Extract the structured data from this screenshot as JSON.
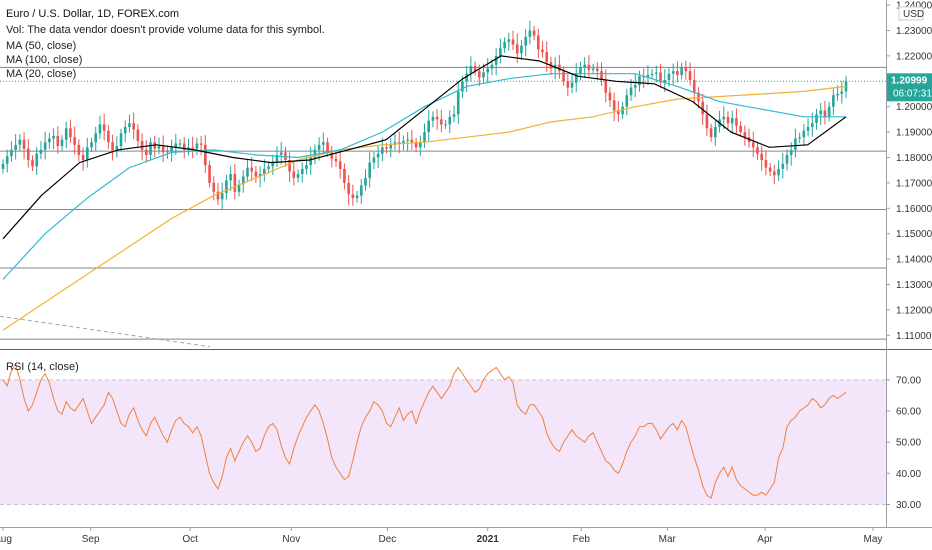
{
  "header": {
    "symbol": "Euro / U.S. Dollar, 1D, FOREX.com",
    "vol_note": "Vol: The data vendor doesn't provide volume data for this symbol.",
    "ma50": "MA (50, close)",
    "ma100": "MA (100, close)",
    "ma20": "MA (20, close)"
  },
  "price_axis": {
    "currency": "USD",
    "last_price": "1.20999",
    "countdown": "06:07:31",
    "ticks": [
      "1.24000",
      "1.23000",
      "1.22000",
      "1.21000",
      "1.20000",
      "1.19000",
      "1.18000",
      "1.17000",
      "1.16000",
      "1.15000",
      "1.14000",
      "1.13000",
      "1.12000",
      "1.11000"
    ]
  },
  "rsi": {
    "label": "RSI (14, close)",
    "ticks": [
      "70.00",
      "60.00",
      "50.00",
      "40.00",
      "30.00"
    ]
  },
  "time_axis": {
    "labels": [
      "Aug",
      "Sep",
      "Oct",
      "Nov",
      "Dec",
      "2021",
      "Feb",
      "Mar",
      "Apr",
      "May"
    ]
  },
  "colors": {
    "up": "#26a69a",
    "down": "#ef5350",
    "ma50": "#000000",
    "ma100": "#2fbcd0",
    "ma20": "#f2b135",
    "rsi_line": "#f0803c",
    "rsi_band": "#f3e6fb",
    "hline": "#7f8790",
    "tag_green": "#26a69a"
  },
  "chart_data": {
    "type": "candlestick",
    "title": "Euro / U.S. Dollar, 1D, FOREX.com",
    "x": "days from 2020-08-01 to 2021-04-23",
    "ylim": [
      1.105,
      1.242
    ],
    "horizontal_levels": [
      1.2155,
      1.1825,
      1.1595,
      1.1365,
      1.1085
    ],
    "closes": [
      1.1775,
      1.1805,
      1.183,
      1.185,
      1.187,
      1.1835,
      1.179,
      1.1765,
      1.1815,
      1.183,
      1.186,
      1.1875,
      1.1885,
      1.1845,
      1.187,
      1.1915,
      1.188,
      1.185,
      1.181,
      1.179,
      1.184,
      1.186,
      1.1895,
      1.193,
      1.1905,
      1.186,
      1.183,
      1.1845,
      1.1895,
      1.192,
      1.1935,
      1.191,
      1.1865,
      1.183,
      1.181,
      1.186,
      1.1835,
      1.1845,
      1.182,
      1.1825,
      1.184,
      1.1855,
      1.1855,
      1.183,
      1.184,
      1.1835,
      1.1855,
      1.185,
      1.177,
      1.17,
      1.1665,
      1.1635,
      1.166,
      1.171,
      1.1735,
      1.1665,
      1.1695,
      1.1725,
      1.176,
      1.1745,
      1.1725,
      1.1735,
      1.1755,
      1.1765,
      1.1785,
      1.181,
      1.182,
      1.179,
      1.1745,
      1.172,
      1.1735,
      1.1755,
      1.177,
      1.18,
      1.183,
      1.185,
      1.186,
      1.182,
      1.1795,
      1.1785,
      1.1755,
      1.17,
      1.1655,
      1.164,
      1.165,
      1.169,
      1.172,
      1.178,
      1.18,
      1.1815,
      1.184,
      1.1835,
      1.185,
      1.186,
      1.1855,
      1.1865,
      1.187,
      1.186,
      1.184,
      1.186,
      1.19,
      1.1945,
      1.196,
      1.195,
      1.193,
      1.193,
      1.196,
      1.197,
      1.206,
      1.21,
      1.213,
      1.216,
      1.214,
      1.2115,
      1.2135,
      1.215,
      1.2165,
      1.22,
      1.223,
      1.2255,
      1.2265,
      1.2245,
      1.221,
      1.224,
      1.2275,
      1.23,
      1.228,
      1.2225,
      1.2215,
      1.2175,
      1.215,
      1.2165,
      1.214,
      1.21,
      1.2075,
      1.2095,
      1.213,
      1.2155,
      1.2165,
      1.2145,
      1.215,
      1.214,
      1.2105,
      1.2055,
      1.2025,
      1.1985,
      1.197,
      1.2,
      1.2045,
      1.2075,
      1.2085,
      1.212,
      1.2115,
      1.2125,
      1.213,
      1.2135,
      1.2095,
      1.2105,
      1.213,
      1.214,
      1.2125,
      1.2155,
      1.214,
      1.2105,
      1.2055,
      1.202,
      1.197,
      1.1915,
      1.188,
      1.192,
      1.195,
      1.196,
      1.1935,
      1.1955,
      1.1925,
      1.19,
      1.188,
      1.186,
      1.184,
      1.1815,
      1.179,
      1.176,
      1.1745,
      1.173,
      1.1755,
      1.1775,
      1.181,
      1.183,
      1.1875,
      1.188,
      1.1905,
      1.192,
      1.1935,
      1.197,
      1.1985,
      1.196,
      1.2,
      1.2045,
      1.205,
      1.206,
      1.21
    ],
    "ma20": [
      1.112,
      1.123,
      1.134,
      1.145,
      1.156,
      1.165,
      1.172,
      1.179,
      1.183,
      1.185,
      1.186,
      1.188,
      1.19,
      1.194,
      1.196,
      1.2,
      1.203,
      1.204,
      1.205,
      1.206,
      1.208
    ],
    "ma50": [
      1.148,
      1.165,
      1.178,
      1.183,
      1.185,
      1.183,
      1.18,
      1.178,
      1.179,
      1.183,
      1.187,
      1.199,
      1.211,
      1.22,
      1.218,
      1.212,
      1.21,
      1.209,
      1.202,
      1.19,
      1.184,
      1.185,
      1.196
    ],
    "ma100": [
      1.132,
      1.15,
      1.164,
      1.176,
      1.182,
      1.183,
      1.181,
      1.18,
      1.183,
      1.19,
      1.2,
      1.208,
      1.211,
      1.213,
      1.213,
      1.213,
      1.208,
      1.202,
      1.199,
      1.196,
      1.196
    ],
    "rsi": [
      70,
      68,
      73,
      75,
      70,
      64,
      60,
      62,
      66,
      70,
      72,
      69,
      64,
      60,
      59,
      63,
      61,
      60,
      62,
      64,
      60,
      56,
      58,
      60,
      62,
      66,
      64,
      60,
      56,
      55,
      59,
      61,
      57,
      54,
      52,
      56,
      58,
      55,
      52,
      50,
      54,
      57,
      58,
      56,
      55,
      53,
      55,
      52,
      46,
      40,
      37,
      35,
      39,
      45,
      48,
      44,
      47,
      50,
      52,
      50,
      47,
      48,
      52,
      55,
      56,
      54,
      49,
      45,
      43,
      48,
      52,
      55,
      58,
      60,
      62,
      60,
      56,
      51,
      45,
      42,
      40,
      38,
      39,
      44,
      50,
      55,
      58,
      60,
      63,
      62,
      60,
      56,
      55,
      58,
      61,
      57,
      59,
      60,
      56,
      60,
      63,
      66,
      68,
      66,
      64,
      66,
      68,
      72,
      74,
      72,
      70,
      68,
      66,
      67,
      70,
      72,
      73,
      74,
      72,
      70,
      71,
      69,
      62,
      60,
      59,
      62,
      62,
      60,
      58,
      53,
      50,
      48,
      47,
      50,
      52,
      54,
      52,
      51,
      50,
      52,
      53,
      50,
      47,
      44,
      43,
      41,
      40,
      43,
      47,
      50,
      52,
      55,
      55,
      56,
      56,
      54,
      51,
      53,
      55,
      56,
      54,
      57,
      55,
      50,
      45,
      41,
      36,
      33,
      32,
      37,
      40,
      42,
      39,
      42,
      38,
      36,
      35,
      34,
      33,
      33,
      34,
      33,
      35,
      37,
      45,
      48,
      55,
      57,
      58,
      60,
      61,
      62,
      64,
      63,
      61,
      62,
      64,
      65,
      64,
      65,
      66
    ],
    "rsi_band": [
      30,
      70
    ]
  }
}
